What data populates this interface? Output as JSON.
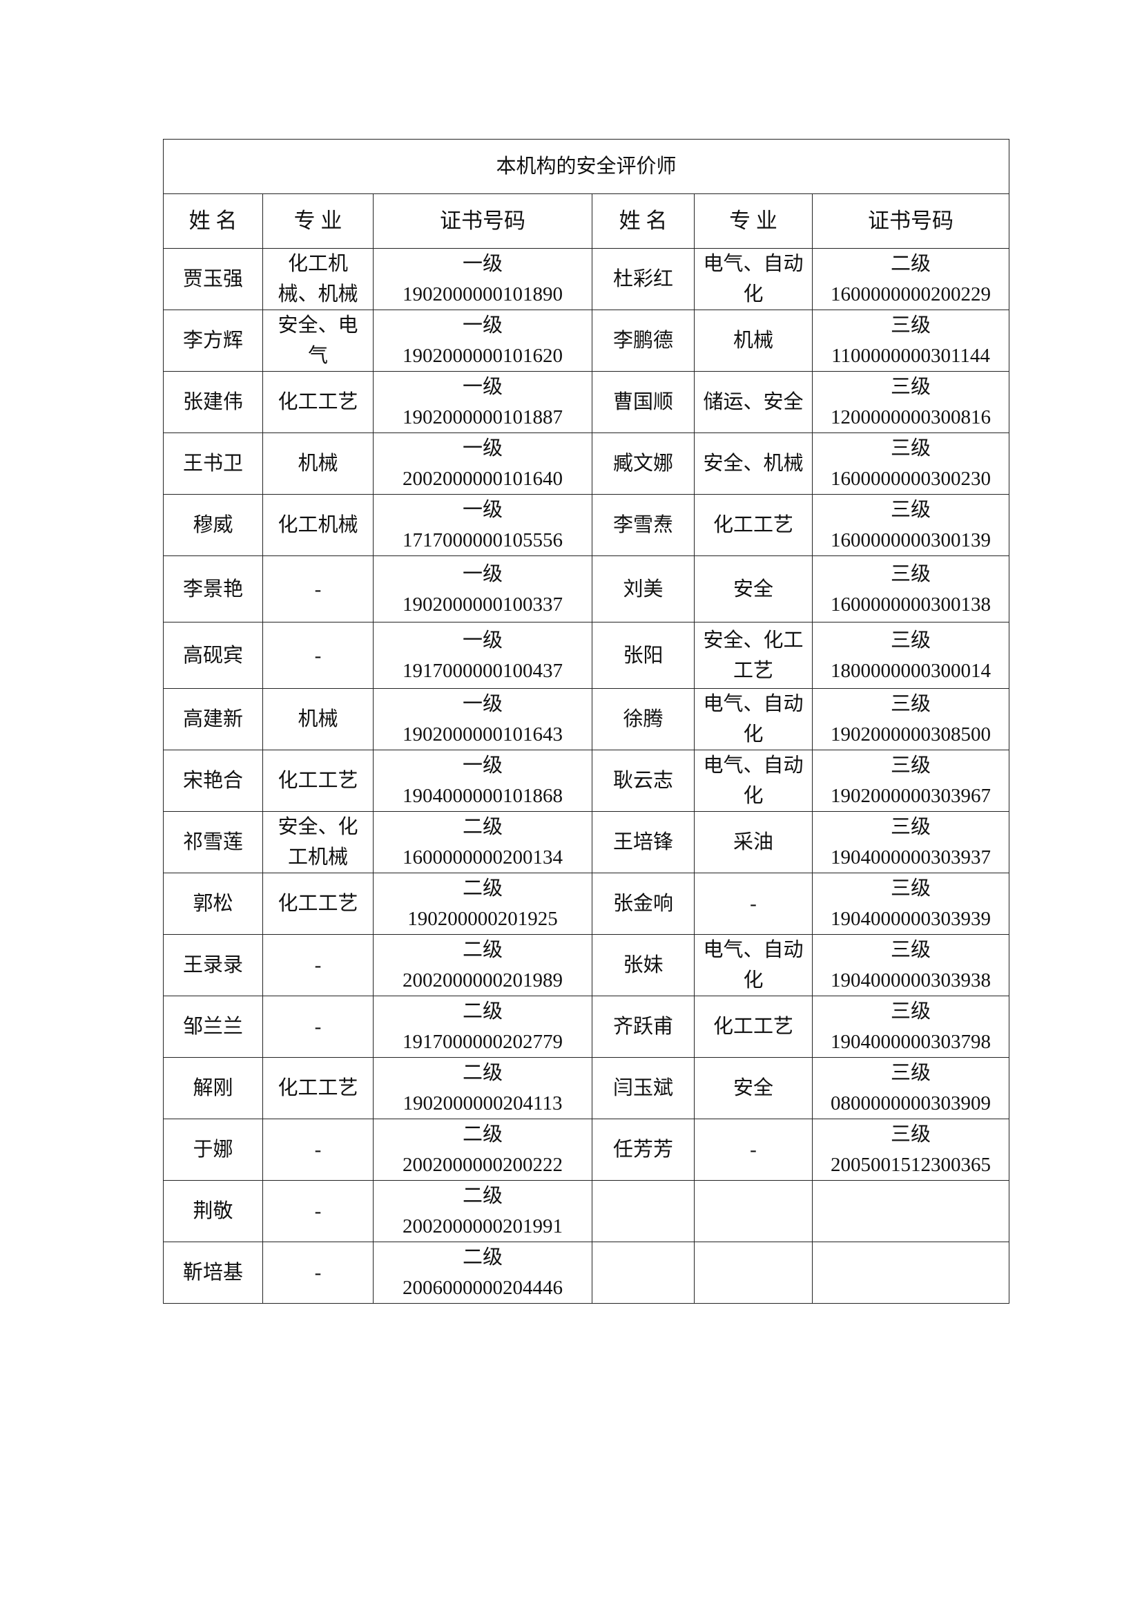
{
  "title": "本机构的安全评价师",
  "headers": [
    "姓 名",
    "专 业",
    "证书号码",
    "姓 名",
    "专 业",
    "证书号码"
  ],
  "rows": [
    {
      "name1": "贾玉强",
      "major1": "化工机\n械、机械",
      "cert1": "一级\n1902000000101890",
      "name2": "杜彩红",
      "major2": "电气、自动\n化",
      "cert2": "二级\n1600000000200229"
    },
    {
      "name1": "李方辉",
      "major1": "安全、电\n气",
      "cert1": "一级\n1902000000101620",
      "name2": "李鹏德",
      "major2": "机械",
      "cert2": "三级\n1100000000301144"
    },
    {
      "name1": "张建伟",
      "major1": "化工工艺",
      "cert1": "一级\n1902000000101887",
      "name2": "曹国顺",
      "major2": "储运、安全",
      "cert2": "三级\n1200000000300816"
    },
    {
      "name1": "王书卫",
      "major1": "机械",
      "cert1": "一级\n2002000000101640",
      "name2": "臧文娜",
      "major2": "安全、机械",
      "cert2": "三级\n1600000000300230"
    },
    {
      "name1": "穆威",
      "major1": "化工机械",
      "cert1": "一级\n1717000000105556",
      "name2": "李雪焘",
      "major2": "化工工艺",
      "cert2": "三级\n1600000000300139"
    },
    {
      "name1": "李景艳",
      "major1": "-",
      "cert1": "一级\n1902000000100337",
      "name2": "刘美",
      "major2": "安全",
      "cert2": "三级\n1600000000300138"
    },
    {
      "name1": "高砚宾",
      "major1": "-",
      "cert1": "一级\n1917000000100437",
      "name2": "张阳",
      "major2": "安全、化工\n工艺",
      "cert2": "三级\n1800000000300014"
    },
    {
      "name1": "高建新",
      "major1": "机械",
      "cert1": "一级\n1902000000101643",
      "name2": "徐腾",
      "major2": "电气、自动\n化",
      "cert2": "三级\n1902000000308500"
    },
    {
      "name1": "宋艳合",
      "major1": "化工工艺",
      "cert1": "一级\n1904000000101868",
      "name2": "耿云志",
      "major2": "电气、自动\n化",
      "cert2": "三级\n1902000000303967"
    },
    {
      "name1": "祁雪莲",
      "major1": "安全、化\n工机械",
      "cert1": "二级\n1600000000200134",
      "name2": "王培锋",
      "major2": "采油",
      "cert2": "三级\n1904000000303937"
    },
    {
      "name1": "郭松",
      "major1": "化工工艺",
      "cert1": "二级\n190200000201925",
      "name2": "张金响",
      "major2": "-",
      "cert2": "三级\n1904000000303939"
    },
    {
      "name1": "王录录",
      "major1": "-",
      "cert1": "二级\n2002000000201989",
      "name2": "张妹",
      "major2": "电气、自动\n化",
      "cert2": "三级\n1904000000303938"
    },
    {
      "name1": "邹兰兰",
      "major1": "-",
      "cert1": "二级\n1917000000202779",
      "name2": "齐跃甫",
      "major2": "化工工艺",
      "cert2": "三级\n1904000000303798"
    },
    {
      "name1": "解刚",
      "major1": "化工工艺",
      "cert1": "二级\n1902000000204113",
      "name2": "闫玉斌",
      "major2": "安全",
      "cert2": "三级\n0800000000303909"
    },
    {
      "name1": "于娜",
      "major1": "-",
      "cert1": "二级\n2002000000200222",
      "name2": "任芳芳",
      "major2": "-",
      "cert2": "三级\n2005001512300365"
    },
    {
      "name1": "荆敬",
      "major1": "-",
      "cert1": "二级\n2002000000201991",
      "name2": "",
      "major2": "",
      "cert2": ""
    },
    {
      "name1": "靳培基",
      "major1": "-",
      "cert1": "二级\n2006000000204446",
      "name2": "",
      "major2": "",
      "cert2": ""
    }
  ]
}
